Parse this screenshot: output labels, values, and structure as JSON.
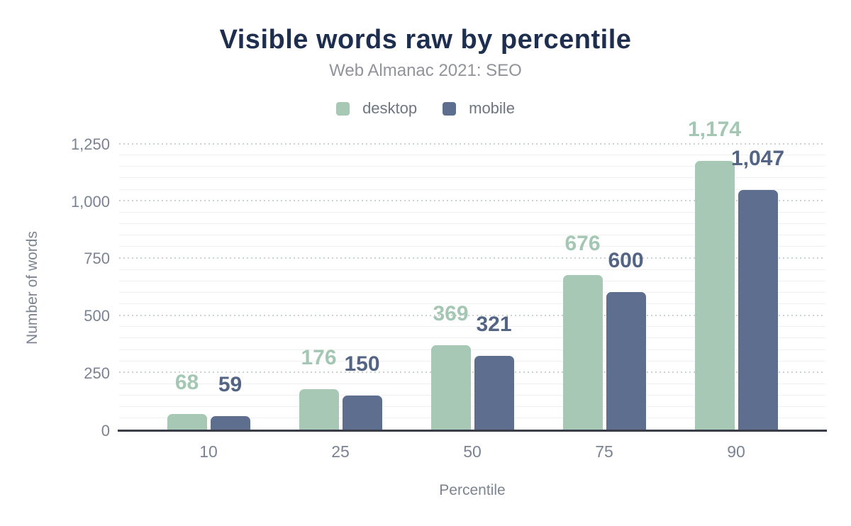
{
  "title": "Visible words raw by percentile",
  "subtitle": "Web Almanac 2021: SEO",
  "legend": {
    "items": [
      {
        "name": "desktop",
        "label": "desktop",
        "color": "#a6c8b4"
      },
      {
        "name": "mobile",
        "label": "mobile",
        "color": "#5d6e8e"
      }
    ]
  },
  "axes": {
    "y_title": "Number of words",
    "x_title": "Percentile",
    "y_tick_labels": [
      "0",
      "250",
      "500",
      "750",
      "1,000",
      "1,250"
    ],
    "x_tick_labels": [
      "10",
      "25",
      "50",
      "75",
      "90"
    ]
  },
  "chart_data": {
    "type": "bar",
    "title": "Visible words raw by percentile",
    "subtitle": "Web Almanac 2021: SEO",
    "categories": [
      "10",
      "25",
      "50",
      "75",
      "90"
    ],
    "series": [
      {
        "name": "desktop",
        "color": "#a6c8b4",
        "values": [
          68,
          176,
          369,
          676,
          1174
        ],
        "value_labels": [
          "68",
          "176",
          "369",
          "676",
          "1,174"
        ]
      },
      {
        "name": "mobile",
        "color": "#5d6e8e",
        "values": [
          59,
          150,
          321,
          600,
          1047
        ],
        "value_labels": [
          "59",
          "150",
          "321",
          "600",
          "1,047"
        ]
      }
    ],
    "xlabel": "Percentile",
    "ylabel": "Number of words",
    "ylim": [
      0,
      1250
    ],
    "yticks": [
      0,
      250,
      500,
      750,
      1000,
      1250
    ],
    "minor_grid_step": 50,
    "grid": "on",
    "legend_position": "top"
  },
  "colors": {
    "title_text": "#1e2e4f",
    "subtitle_text": "#909399",
    "legend_text": "#6f7681",
    "desktop_bar": "#a6c8b4",
    "mobile_bar": "#5d6e8e",
    "desktop_value_label": "#a3c7b3",
    "mobile_value_label": "#546485",
    "axis_line": "#383d47",
    "tick_text": "#7b8292",
    "axis_title_text": "#7d848f",
    "major_gridline": "#c6d4cd",
    "minor_gridline": "#f1f1f3",
    "background": "#ffffff"
  }
}
